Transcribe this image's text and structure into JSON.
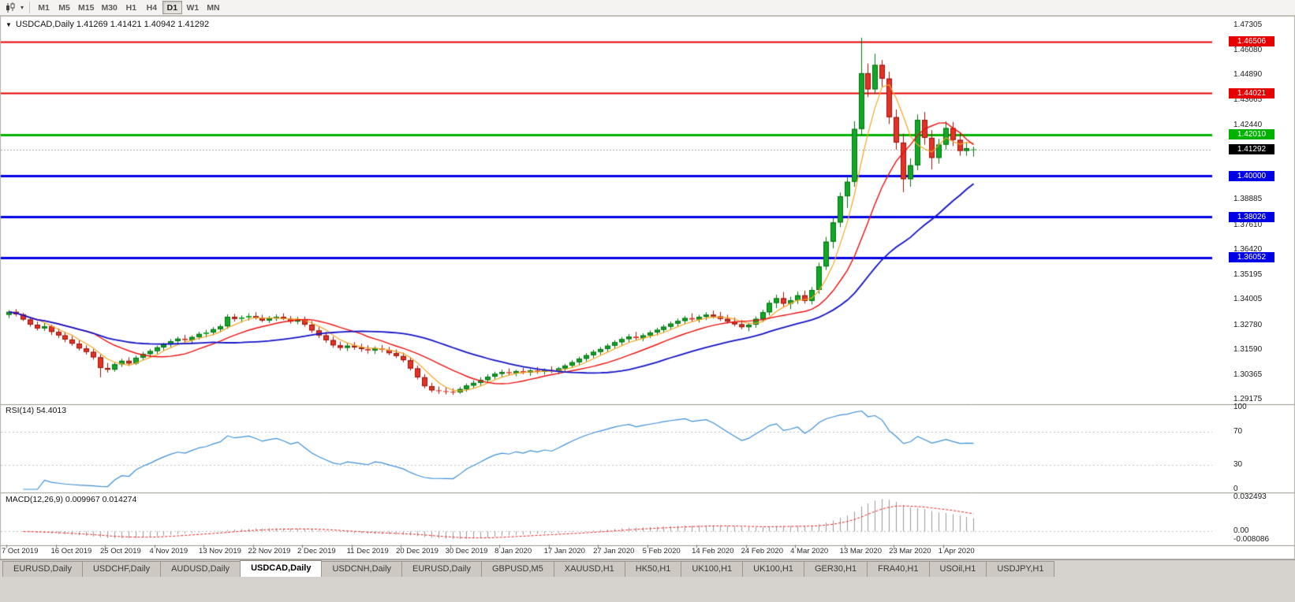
{
  "toolbar": {
    "timeframes": [
      "M1",
      "M5",
      "M15",
      "M30",
      "H1",
      "H4",
      "D1",
      "W1",
      "MN"
    ],
    "active": "D1"
  },
  "chart": {
    "title_text": "USDCAD,Daily 1.41269 1.41421 1.40942 1.41292"
  },
  "tabs": {
    "items": [
      "EURUSD,Daily",
      "USDCHF,Daily",
      "AUDUSD,Daily",
      "USDCAD,Daily",
      "USDCNH,Daily",
      "EURUSD,Daily",
      "GBPUSD,M5",
      "XAUUSD,H1",
      "HK50,H1",
      "UK100,H1",
      "UK100,H1",
      "GER30,H1",
      "FRA40,H1",
      "USOil,H1",
      "USDJPY,H1"
    ],
    "active_index": 3
  },
  "chart_data": {
    "type": "candlestick",
    "symbol": "USDCAD",
    "timeframe": "Daily",
    "current_bar": {
      "open": 1.41269,
      "high": 1.41421,
      "low": 1.40942,
      "close": 1.41292
    },
    "price_axis": {
      "top": 1.47305,
      "bottom": 1.29175,
      "ticks": [
        "1.47305",
        "1.46080",
        "1.44890",
        "1.43665",
        "1.42440",
        "1.38885",
        "1.37610",
        "1.36420",
        "1.35195",
        "1.34005",
        "1.32780",
        "1.31590",
        "1.30365",
        "1.29175"
      ]
    },
    "x_axis": {
      "labels": [
        "7 Oct 2019",
        "16 Oct 2019",
        "25 Oct 2019",
        "4 Nov 2019",
        "13 Nov 2019",
        "22 Nov 2019",
        "2 Dec 2019",
        "11 Dec 2019",
        "20 Dec 2019",
        "30 Dec 2019",
        "8 Jan 2020",
        "17 Jan 2020",
        "27 Jan 2020",
        "5 Feb 2020",
        "14 Feb 2020",
        "24 Feb 2020",
        "4 Mar 2020",
        "13 Mar 2020",
        "23 Mar 2020",
        "1 Apr 2020"
      ],
      "label_every_n_bars": 7
    },
    "horizontal_lines": [
      {
        "price": 1.46506,
        "label": "1.46506",
        "color": "#e60000",
        "text_color": "#ffffff",
        "width": 2
      },
      {
        "price": 1.44021,
        "label": "1.44021",
        "color": "#e60000",
        "text_color": "#ffffff",
        "width": 2
      },
      {
        "price": 1.4201,
        "label": "1.42010",
        "color": "#00b200",
        "text_color": "#ffffff",
        "width": 3
      },
      {
        "price": 1.4,
        "label": "1.40000",
        "color": "#0000e6",
        "text_color": "#ffffff",
        "width": 3
      },
      {
        "price": 1.38026,
        "label": "1.38026",
        "color": "#0000e6",
        "text_color": "#ffffff",
        "width": 3
      },
      {
        "price": 1.36052,
        "label": "1.36052",
        "color": "#0000e6",
        "text_color": "#ffffff",
        "width": 3
      }
    ],
    "current_price_line": {
      "value": 1.41292,
      "label": "1.41292",
      "bg": "#000000",
      "text_color": "#ffffff",
      "style": "dotted"
    },
    "candle_colors": {
      "up_fill": "#10a826",
      "up_border": "#067012",
      "down_fill": "#e63226",
      "down_border": "#99140c"
    },
    "moving_averages": [
      {
        "name": "fast",
        "period": 5,
        "color": "#f5a623",
        "width": 1.2
      },
      {
        "name": "medium",
        "period": 13,
        "color": "#ee1111",
        "width": 1.4
      },
      {
        "name": "slow",
        "period": 30,
        "color": "#1414c8",
        "width": 1.8
      }
    ],
    "indicators": {
      "rsi": {
        "label": "RSI(14) 54.4013",
        "period": 14,
        "value": 54.4013,
        "levels": [
          100,
          70,
          30,
          0
        ],
        "color": "#3e8fd8"
      },
      "macd": {
        "label": "MACD(12,26,9) 0.009967 0.014274",
        "fast": 12,
        "slow": 26,
        "signal": 9,
        "macd_value": 0.009967,
        "signal_value": 0.014274,
        "axis_labels": [
          "0.032493",
          "0.00",
          "-0.008086"
        ],
        "axis_values": [
          0.032493,
          0,
          -0.008086
        ],
        "histogram_color": "#9a9a9a",
        "signal_color": "#ee2222"
      }
    },
    "ohlc": [
      [
        1.3328,
        1.335,
        1.3312,
        1.3342
      ],
      [
        1.3342,
        1.3355,
        1.332,
        1.333
      ],
      [
        1.333,
        1.3338,
        1.3298,
        1.3305
      ],
      [
        1.3305,
        1.3318,
        1.327,
        1.328
      ],
      [
        1.328,
        1.3295,
        1.3252,
        1.3262
      ],
      [
        1.3262,
        1.3288,
        1.325,
        1.3272
      ],
      [
        1.3272,
        1.328,
        1.323,
        1.3245
      ],
      [
        1.3245,
        1.3262,
        1.3215,
        1.3228
      ],
      [
        1.3228,
        1.3245,
        1.3195,
        1.3208
      ],
      [
        1.3208,
        1.3225,
        1.3178,
        1.3188
      ],
      [
        1.3188,
        1.3205,
        1.3155,
        1.3165
      ],
      [
        1.3165,
        1.318,
        1.3135,
        1.3148
      ],
      [
        1.3148,
        1.3162,
        1.311,
        1.3122
      ],
      [
        1.3122,
        1.3135,
        1.3025,
        1.307
      ],
      [
        1.307,
        1.3095,
        1.3048,
        1.3062
      ],
      [
        1.3062,
        1.3098,
        1.3052,
        1.3088
      ],
      [
        1.3088,
        1.3115,
        1.3075,
        1.3105
      ],
      [
        1.3105,
        1.3122,
        1.308,
        1.3092
      ],
      [
        1.3092,
        1.313,
        1.3085,
        1.312
      ],
      [
        1.312,
        1.3148,
        1.3108,
        1.3138
      ],
      [
        1.3138,
        1.3162,
        1.3122,
        1.3152
      ],
      [
        1.3152,
        1.3178,
        1.3138,
        1.317
      ],
      [
        1.317,
        1.3192,
        1.3155,
        1.3185
      ],
      [
        1.3185,
        1.321,
        1.317,
        1.32
      ],
      [
        1.32,
        1.3222,
        1.3182,
        1.3212
      ],
      [
        1.3212,
        1.323,
        1.319,
        1.3205
      ],
      [
        1.3205,
        1.3228,
        1.3192,
        1.322
      ],
      [
        1.322,
        1.3245,
        1.3208,
        1.3235
      ],
      [
        1.3235,
        1.3255,
        1.3218,
        1.3242
      ],
      [
        1.3242,
        1.3268,
        1.3228,
        1.3258
      ],
      [
        1.3258,
        1.3282,
        1.3242,
        1.3272
      ],
      [
        1.3272,
        1.333,
        1.326,
        1.3318
      ],
      [
        1.3318,
        1.3332,
        1.3295,
        1.3308
      ],
      [
        1.3308,
        1.3325,
        1.329,
        1.3315
      ],
      [
        1.3315,
        1.3335,
        1.33,
        1.3322
      ],
      [
        1.3322,
        1.334,
        1.3305,
        1.3312
      ],
      [
        1.3312,
        1.3328,
        1.3292,
        1.33
      ],
      [
        1.33,
        1.3322,
        1.3288,
        1.331
      ],
      [
        1.331,
        1.333,
        1.3298,
        1.3318
      ],
      [
        1.3318,
        1.3335,
        1.3302,
        1.3308
      ],
      [
        1.3308,
        1.3322,
        1.3285,
        1.3295
      ],
      [
        1.3295,
        1.3318,
        1.3282,
        1.3305
      ],
      [
        1.3305,
        1.332,
        1.327,
        1.328
      ],
      [
        1.328,
        1.3298,
        1.324,
        1.3252
      ],
      [
        1.3252,
        1.3268,
        1.3215,
        1.3228
      ],
      [
        1.3228,
        1.3245,
        1.3192,
        1.3205
      ],
      [
        1.3205,
        1.3222,
        1.3168,
        1.318
      ],
      [
        1.318,
        1.3198,
        1.3155,
        1.3168
      ],
      [
        1.3168,
        1.3192,
        1.3152,
        1.3178
      ],
      [
        1.3178,
        1.3195,
        1.3158,
        1.317
      ],
      [
        1.317,
        1.3188,
        1.3148,
        1.3162
      ],
      [
        1.3162,
        1.318,
        1.314,
        1.3155
      ],
      [
        1.3155,
        1.3175,
        1.3138,
        1.3165
      ],
      [
        1.3165,
        1.3182,
        1.3145,
        1.3158
      ],
      [
        1.3158,
        1.3172,
        1.3132,
        1.3142
      ],
      [
        1.3142,
        1.316,
        1.3118,
        1.3128
      ],
      [
        1.3128,
        1.3145,
        1.3098,
        1.3108
      ],
      [
        1.3108,
        1.3122,
        1.3058,
        1.3068
      ],
      [
        1.3068,
        1.3082,
        1.3015,
        1.3025
      ],
      [
        1.3025,
        1.304,
        1.2972,
        1.2982
      ],
      [
        1.2982,
        1.2998,
        1.2952,
        1.2962
      ],
      [
        1.2962,
        1.298,
        1.2945,
        1.2958
      ],
      [
        1.2958,
        1.2975,
        1.2942,
        1.2955
      ],
      [
        1.2955,
        1.2972,
        1.294,
        1.2952
      ],
      [
        1.2952,
        1.2978,
        1.2945,
        1.2968
      ],
      [
        1.2968,
        1.2995,
        1.2955,
        1.2985
      ],
      [
        1.2985,
        1.301,
        1.2972,
        1.2998
      ],
      [
        1.2998,
        1.3025,
        1.2985,
        1.3012
      ],
      [
        1.3012,
        1.304,
        1.3,
        1.3028
      ],
      [
        1.3028,
        1.3052,
        1.3015,
        1.3042
      ],
      [
        1.3042,
        1.3062,
        1.3028,
        1.305
      ],
      [
        1.305,
        1.3068,
        1.3035,
        1.3045
      ],
      [
        1.3045,
        1.3062,
        1.303,
        1.3055
      ],
      [
        1.3055,
        1.3072,
        1.304,
        1.3048
      ],
      [
        1.3048,
        1.3065,
        1.3032,
        1.3058
      ],
      [
        1.3058,
        1.3075,
        1.3042,
        1.3052
      ],
      [
        1.3052,
        1.3068,
        1.3038,
        1.306
      ],
      [
        1.306,
        1.3078,
        1.3045,
        1.3055
      ],
      [
        1.3055,
        1.3075,
        1.304,
        1.3068
      ],
      [
        1.3068,
        1.309,
        1.3055,
        1.3082
      ],
      [
        1.3082,
        1.3108,
        1.307,
        1.3098
      ],
      [
        1.3098,
        1.3125,
        1.3085,
        1.3115
      ],
      [
        1.3115,
        1.3142,
        1.3102,
        1.3132
      ],
      [
        1.3132,
        1.3158,
        1.3118,
        1.3148
      ],
      [
        1.3148,
        1.3172,
        1.3135,
        1.3162
      ],
      [
        1.3162,
        1.3188,
        1.3148,
        1.3178
      ],
      [
        1.3178,
        1.3205,
        1.3165,
        1.3195
      ],
      [
        1.3195,
        1.322,
        1.318,
        1.321
      ],
      [
        1.321,
        1.3235,
        1.3195,
        1.3222
      ],
      [
        1.3222,
        1.3245,
        1.3205,
        1.3215
      ],
      [
        1.3215,
        1.3238,
        1.32,
        1.3228
      ],
      [
        1.3228,
        1.3252,
        1.3215,
        1.3242
      ],
      [
        1.3242,
        1.3265,
        1.3228,
        1.3255
      ],
      [
        1.3255,
        1.328,
        1.3242,
        1.327
      ],
      [
        1.327,
        1.3295,
        1.3255,
        1.3285
      ],
      [
        1.3285,
        1.331,
        1.327,
        1.3298
      ],
      [
        1.3298,
        1.3322,
        1.3282,
        1.3312
      ],
      [
        1.3312,
        1.3335,
        1.3295,
        1.3305
      ],
      [
        1.3305,
        1.3328,
        1.329,
        1.3318
      ],
      [
        1.3318,
        1.334,
        1.3302,
        1.3328
      ],
      [
        1.3328,
        1.3348,
        1.331,
        1.332
      ],
      [
        1.332,
        1.3342,
        1.3298,
        1.3308
      ],
      [
        1.3308,
        1.3328,
        1.3285,
        1.3295
      ],
      [
        1.3295,
        1.3315,
        1.3272,
        1.3282
      ],
      [
        1.3282,
        1.3302,
        1.3258,
        1.3268
      ],
      [
        1.3268,
        1.329,
        1.3248,
        1.328
      ],
      [
        1.328,
        1.332,
        1.3265,
        1.3308
      ],
      [
        1.3308,
        1.3352,
        1.3292,
        1.334
      ],
      [
        1.334,
        1.3398,
        1.3325,
        1.3385
      ],
      [
        1.3385,
        1.3425,
        1.336,
        1.3408
      ],
      [
        1.3408,
        1.3438,
        1.3368,
        1.3382
      ],
      [
        1.3382,
        1.3415,
        1.3355,
        1.3398
      ],
      [
        1.3398,
        1.344,
        1.338,
        1.3422
      ],
      [
        1.3422,
        1.3445,
        1.3382,
        1.3395
      ],
      [
        1.3395,
        1.3462,
        1.3378,
        1.3448
      ],
      [
        1.3448,
        1.358,
        1.343,
        1.3562
      ],
      [
        1.3562,
        1.3705,
        1.3545,
        1.3682
      ],
      [
        1.3682,
        1.3798,
        1.365,
        1.3775
      ],
      [
        1.3775,
        1.392,
        1.3752,
        1.3902
      ],
      [
        1.3902,
        1.3998,
        1.3845,
        1.3972
      ],
      [
        1.3972,
        1.4265,
        1.3948,
        1.4228
      ],
      [
        1.4228,
        1.467,
        1.4195,
        1.4498
      ],
      [
        1.4498,
        1.4545,
        1.4382,
        1.442
      ],
      [
        1.442,
        1.4592,
        1.4398,
        1.4538
      ],
      [
        1.4538,
        1.4562,
        1.443,
        1.4472
      ],
      [
        1.4472,
        1.4505,
        1.4252,
        1.4285
      ],
      [
        1.4285,
        1.4322,
        1.4128,
        1.4162
      ],
      [
        1.4162,
        1.4205,
        1.3922,
        1.3985
      ],
      [
        1.3985,
        1.4085,
        1.3948,
        1.4052
      ],
      [
        1.4052,
        1.4298,
        1.4028,
        1.4272
      ],
      [
        1.4272,
        1.431,
        1.4152,
        1.4185
      ],
      [
        1.4185,
        1.4222,
        1.4032,
        1.4088
      ],
      [
        1.4088,
        1.418,
        1.406,
        1.4152
      ],
      [
        1.4152,
        1.4265,
        1.4128,
        1.4232
      ],
      [
        1.4232,
        1.4262,
        1.4145,
        1.4175
      ],
      [
        1.4175,
        1.421,
        1.4098,
        1.4122
      ],
      [
        1.4122,
        1.4165,
        1.4098,
        1.4135
      ],
      [
        1.41269,
        1.41421,
        1.40942,
        1.41292
      ]
    ]
  }
}
